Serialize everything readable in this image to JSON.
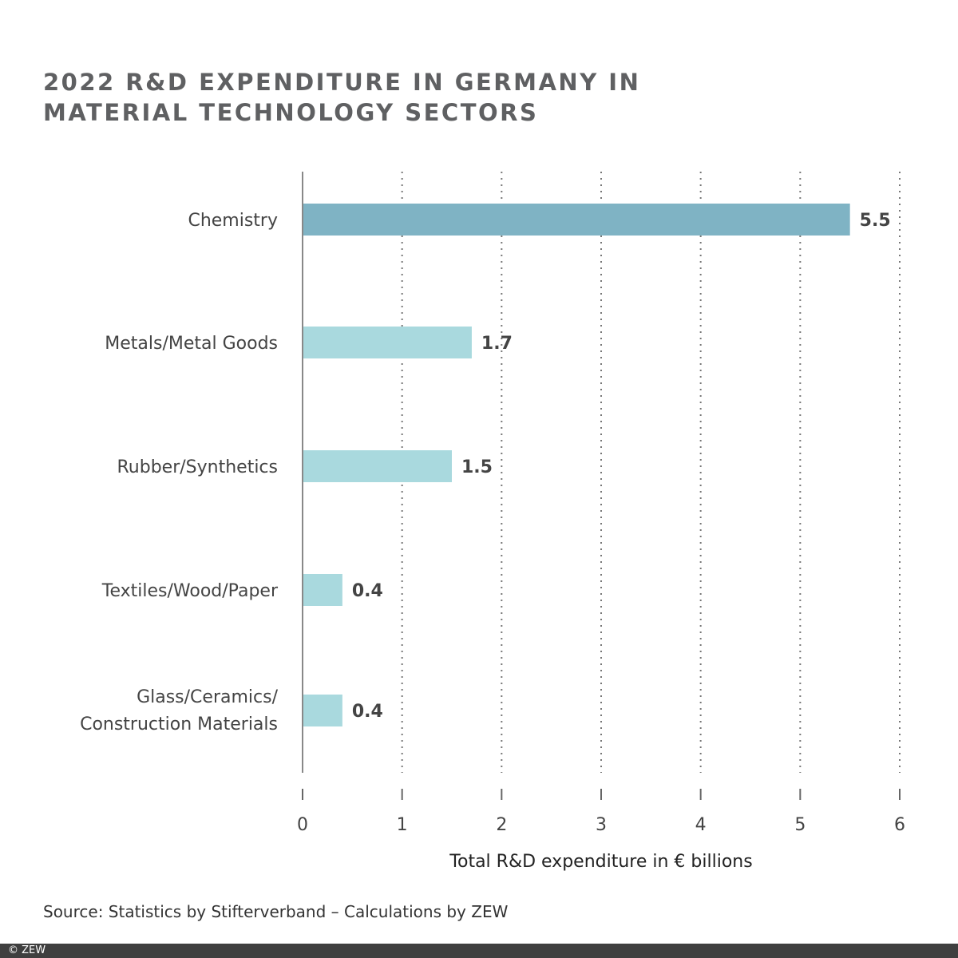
{
  "chart_data": {
    "type": "bar",
    "orientation": "horizontal",
    "title": "2022 R&D EXPENDITURE IN GERMANY IN MATERIAL TECHNOLOGY SECTORS",
    "categories": [
      "Chemistry",
      "Metals/Metal Goods",
      "Rubber/Synthetics",
      "Textiles/Wood/Paper",
      "Glass/Ceramics/ Construction Materials"
    ],
    "values": [
      5.5,
      1.7,
      1.5,
      0.4,
      0.4
    ],
    "data_labels": [
      "5.5",
      "1.7",
      "1.5",
      "0.4",
      "0.4"
    ],
    "xlabel": "Total R&D expenditure in € billions",
    "ylabel": "",
    "xlim": [
      0,
      6
    ],
    "xticks": [
      "0",
      "1",
      "2",
      "3",
      "4",
      "5",
      "6"
    ],
    "grid": "vertical dotted",
    "colors": {
      "highlight": "#7fb3c4",
      "default": "#a9d9de"
    }
  },
  "source": "Source: Statistics by Stifterverband – Calculations by ZEW",
  "copyright": "© ZEW"
}
